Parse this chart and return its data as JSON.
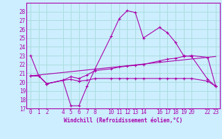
{
  "xlabel": "Windchill (Refroidissement éolien,°C)",
  "bg_color": "#cceeff",
  "grid_color": "#aadddd",
  "line_color": "#aa00aa",
  "xlim": [
    -0.5,
    23.5
  ],
  "ylim": [
    17,
    29
  ],
  "yticks": [
    17,
    18,
    19,
    20,
    21,
    22,
    23,
    24,
    25,
    26,
    27,
    28
  ],
  "xticks": [
    0,
    1,
    2,
    4,
    5,
    6,
    7,
    8,
    10,
    11,
    12,
    13,
    14,
    16,
    17,
    18,
    19,
    20,
    22,
    23
  ],
  "series": [
    {
      "x": [
        0,
        1,
        2,
        4,
        5,
        6,
        7,
        8,
        10,
        11,
        12,
        13,
        14,
        16,
        17,
        18,
        19,
        20,
        22,
        23
      ],
      "y": [
        23.0,
        20.7,
        19.8,
        20.2,
        17.3,
        17.3,
        19.5,
        21.5,
        25.2,
        27.2,
        28.1,
        27.9,
        25.0,
        26.2,
        25.6,
        24.5,
        23.0,
        22.9,
        20.3,
        19.5
      ]
    },
    {
      "x": [
        0,
        1,
        2,
        4,
        5,
        6,
        7,
        8,
        10,
        11,
        12,
        13,
        14,
        16,
        17,
        18,
        19,
        20,
        22,
        23
      ],
      "y": [
        20.7,
        20.7,
        19.8,
        20.2,
        20.3,
        20.1,
        20.2,
        20.4,
        20.4,
        20.4,
        20.4,
        20.4,
        20.4,
        20.4,
        20.4,
        20.4,
        20.4,
        20.4,
        20.1,
        19.5
      ]
    },
    {
      "x": [
        0,
        1,
        2,
        4,
        5,
        6,
        7,
        8,
        10,
        11,
        12,
        13,
        14,
        16,
        17,
        18,
        19,
        20,
        22,
        23
      ],
      "y": [
        20.7,
        20.7,
        19.8,
        20.2,
        20.6,
        20.4,
        20.8,
        21.3,
        21.5,
        21.7,
        21.8,
        21.9,
        22.0,
        22.4,
        22.6,
        22.7,
        22.9,
        23.0,
        22.8,
        19.5
      ]
    },
    {
      "x": [
        0,
        23
      ],
      "y": [
        20.7,
        22.9
      ]
    }
  ]
}
